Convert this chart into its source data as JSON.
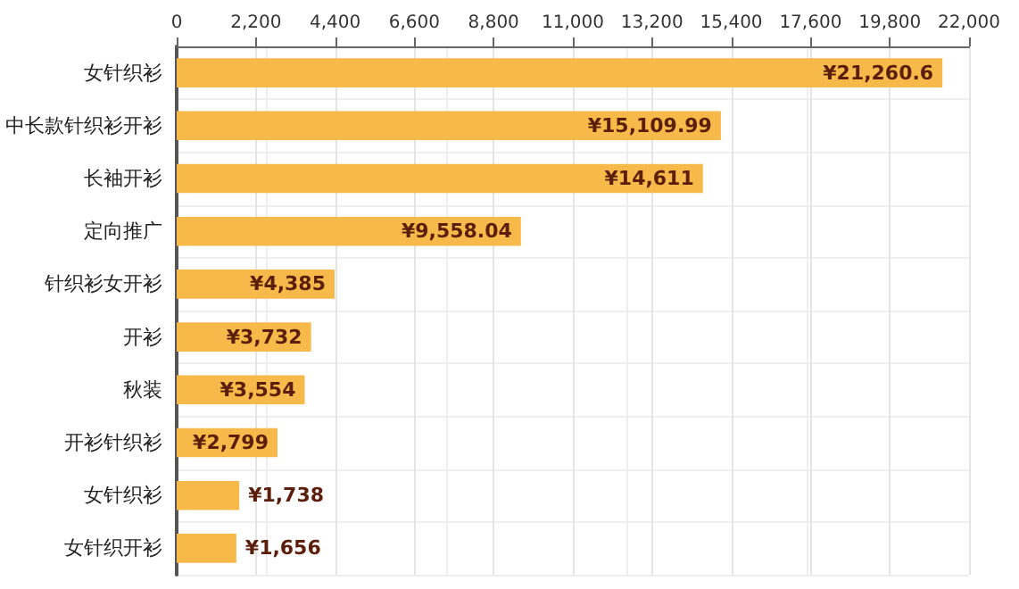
{
  "chart_data": {
    "type": "bar",
    "orientation": "horizontal",
    "categories": [
      "女针织衫",
      "中长款针织衫开衫",
      "长袖开衫",
      "定向推广",
      "针织衫女开衫",
      "开衫",
      "秋装",
      "开衫针织衫",
      "女针织衫",
      "女针织开衫"
    ],
    "values": [
      21260.6,
      15109.99,
      14611,
      9558.04,
      4385,
      3732,
      3554,
      2799,
      1738,
      1656
    ],
    "value_labels": [
      "¥21,260.6",
      "¥15,109.99",
      "¥14,611",
      "¥9,558.04",
      "¥4,385",
      "¥3,732",
      "¥3,554",
      "¥2,799",
      "¥1,738",
      "¥1,656"
    ],
    "color": "#f7b94a",
    "xlim": [
      0,
      22000
    ],
    "xticks": [
      0,
      {
        "value": 2200,
        "label": "2,200"
      },
      {
        "value": 4400,
        "label": "4,400"
      },
      {
        "value": 6600,
        "label": "6,600"
      },
      {
        "value": 8800,
        "label": "8,800"
      },
      {
        "value": 11000,
        "label": "11,000"
      },
      {
        "value": 13200,
        "label": "13,200"
      },
      {
        "value": 15400,
        "label": "15,400"
      },
      {
        "value": 17600,
        "label": "17,600"
      },
      {
        "value": 19800,
        "label": "19,800"
      },
      {
        "value": 22000,
        "label": "22,000"
      }
    ],
    "grid": true
  }
}
